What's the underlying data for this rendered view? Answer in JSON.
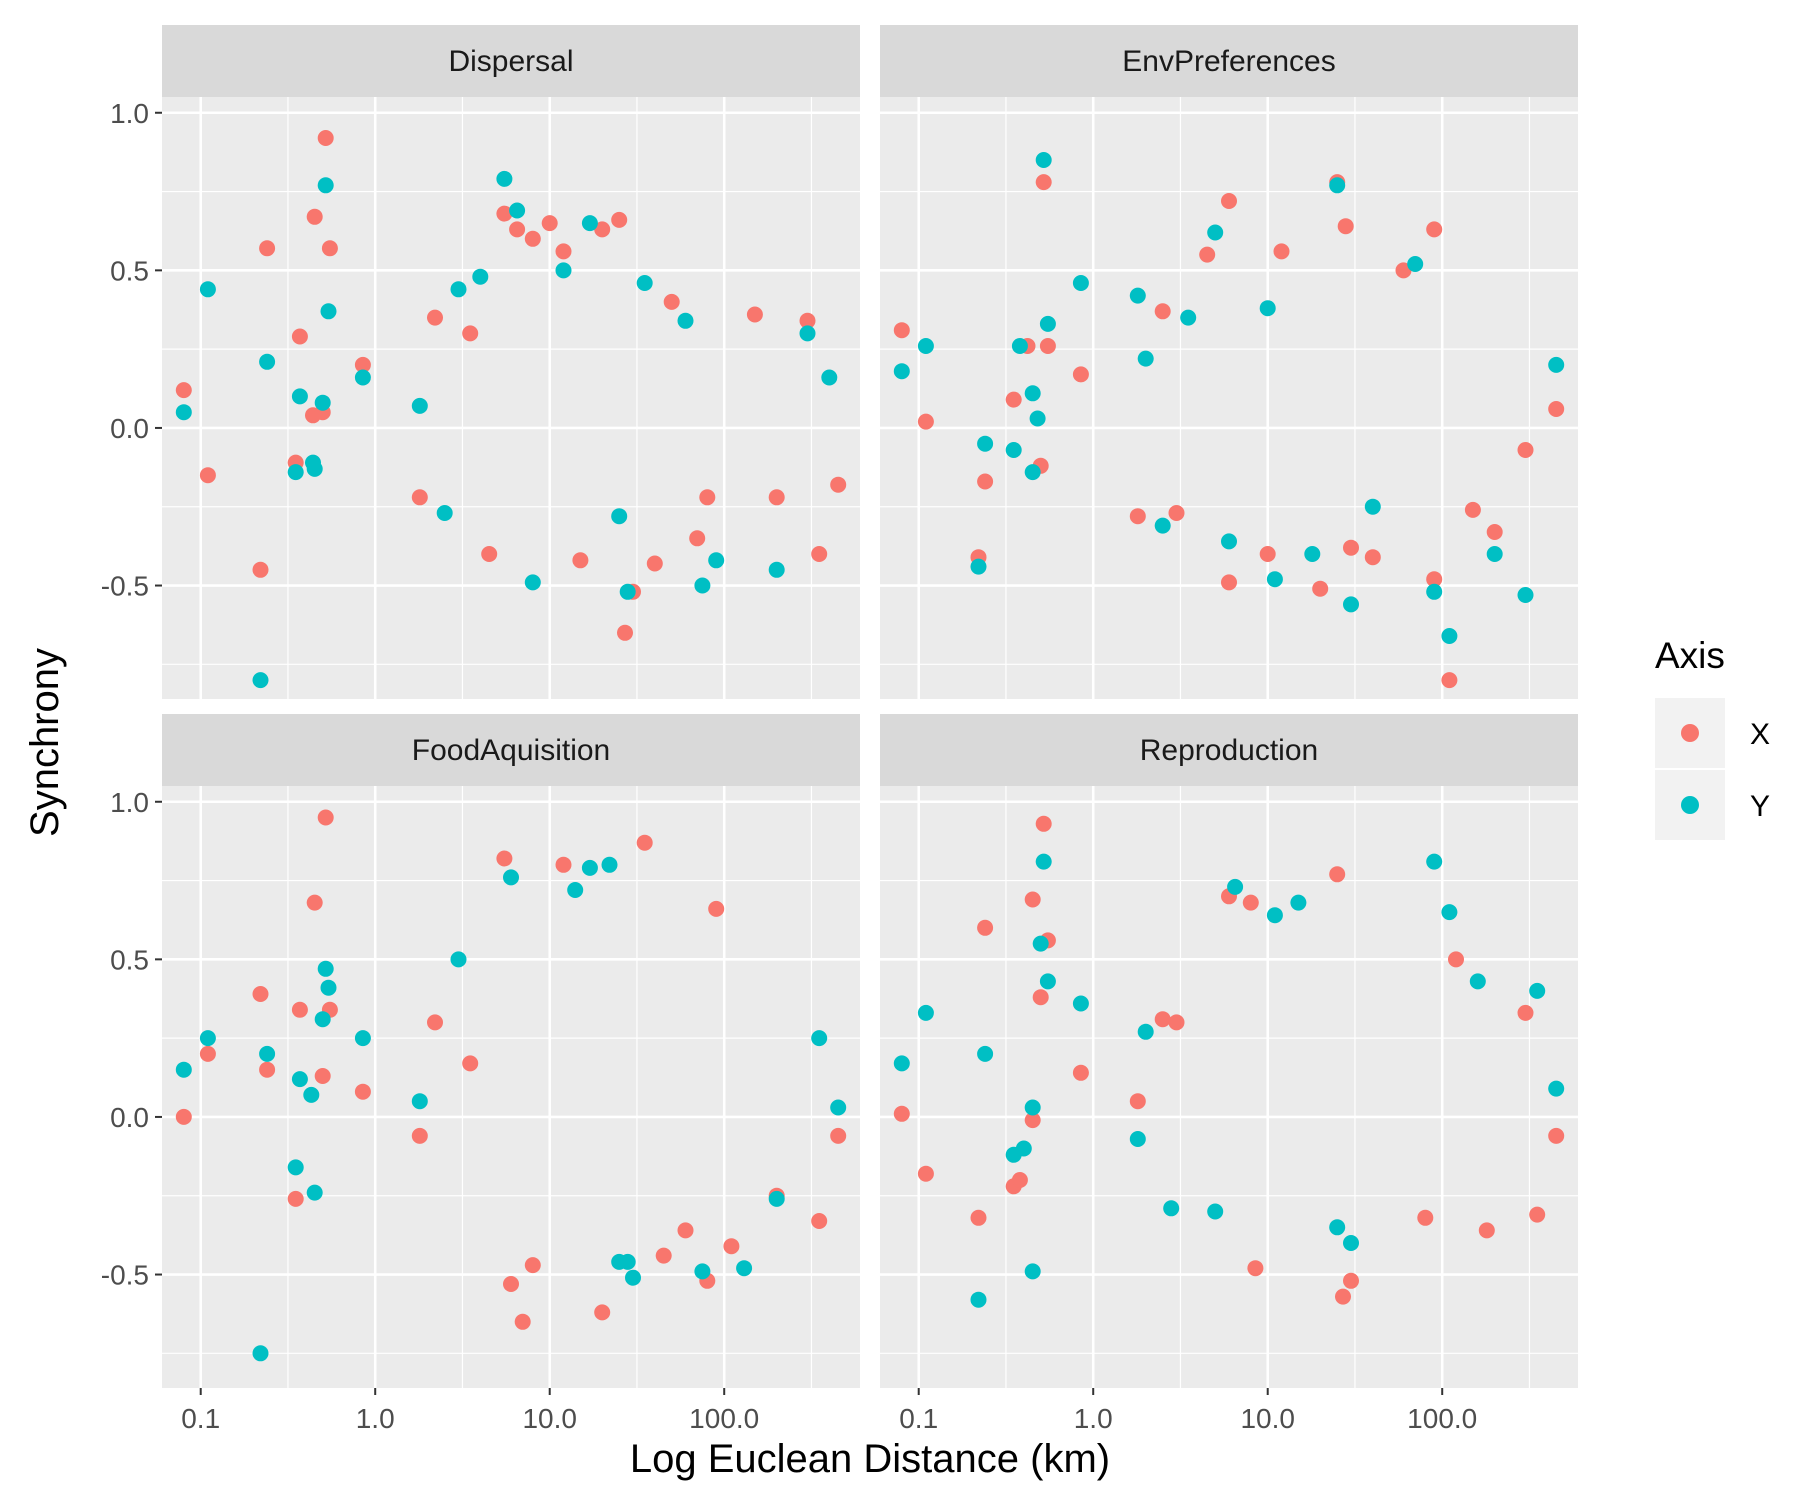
{
  "chart_data": {
    "type": "scatter",
    "xlabel": "Log Euclean Distance (km)",
    "ylabel": "Synchrony",
    "x_scale": "log10",
    "xlim": [
      0.06,
      600
    ],
    "ylim": [
      -0.86,
      1.05
    ],
    "x_ticks": [
      0.1,
      1,
      10,
      100
    ],
    "x_tick_labels": [
      "0.1",
      "1.0",
      "10.0",
      "100.0"
    ],
    "y_ticks": [
      1.0,
      0.5,
      0.0,
      -0.5
    ],
    "y_tick_labels": [
      "1.0",
      "0.5",
      "0.0",
      "-0.5"
    ],
    "grid": true,
    "legend": {
      "title": "Axis",
      "position": "right",
      "entries": [
        {
          "name": "X",
          "color": "#F8766D"
        },
        {
          "name": "Y",
          "color": "#00BFC4"
        }
      ]
    },
    "panels": [
      {
        "title": "Dispersal",
        "series": [
          {
            "name": "X",
            "color": "#F8766D",
            "points": [
              [
                0.08,
                0.12
              ],
              [
                0.11,
                -0.15
              ],
              [
                0.22,
                -0.45
              ],
              [
                0.24,
                0.57
              ],
              [
                0.37,
                0.29
              ],
              [
                0.35,
                -0.11
              ],
              [
                0.45,
                0.67
              ],
              [
                0.44,
                0.04
              ],
              [
                0.52,
                0.92
              ],
              [
                0.55,
                0.57
              ],
              [
                0.5,
                0.05
              ],
              [
                0.85,
                0.2
              ],
              [
                1.8,
                -0.22
              ],
              [
                2.2,
                0.35
              ],
              [
                3.5,
                0.3
              ],
              [
                4.5,
                -0.4
              ],
              [
                5.5,
                0.68
              ],
              [
                6.5,
                0.63
              ],
              [
                8.0,
                0.6
              ],
              [
                10.0,
                0.65
              ],
              [
                12.0,
                0.56
              ],
              [
                15.0,
                -0.42
              ],
              [
                20.0,
                0.63
              ],
              [
                25.0,
                0.66
              ],
              [
                27.0,
                -0.65
              ],
              [
                30.0,
                -0.52
              ],
              [
                40.0,
                -0.43
              ],
              [
                50.0,
                0.4
              ],
              [
                70.0,
                -0.35
              ],
              [
                80.0,
                -0.22
              ],
              [
                150.0,
                0.36
              ],
              [
                200.0,
                -0.22
              ],
              [
                300.0,
                0.34
              ],
              [
                350.0,
                -0.4
              ],
              [
                450.0,
                -0.18
              ]
            ]
          },
          {
            "name": "Y",
            "color": "#00BFC4",
            "points": [
              [
                0.08,
                0.05
              ],
              [
                0.11,
                0.44
              ],
              [
                0.22,
                -0.8
              ],
              [
                0.24,
                0.21
              ],
              [
                0.35,
                -0.14
              ],
              [
                0.37,
                0.1
              ],
              [
                0.45,
                -0.13
              ],
              [
                0.44,
                -0.11
              ],
              [
                0.52,
                0.77
              ],
              [
                0.54,
                0.37
              ],
              [
                0.5,
                0.08
              ],
              [
                0.85,
                0.16
              ],
              [
                1.8,
                0.07
              ],
              [
                2.5,
                -0.27
              ],
              [
                3.0,
                0.44
              ],
              [
                4.0,
                0.48
              ],
              [
                5.5,
                0.79
              ],
              [
                6.5,
                0.69
              ],
              [
                8.0,
                -0.49
              ],
              [
                12.0,
                0.5
              ],
              [
                17.0,
                0.65
              ],
              [
                25.0,
                -0.28
              ],
              [
                28.0,
                -0.52
              ],
              [
                35.0,
                0.46
              ],
              [
                60.0,
                0.34
              ],
              [
                75.0,
                -0.5
              ],
              [
                90.0,
                -0.42
              ],
              [
                200.0,
                -0.45
              ],
              [
                300.0,
                0.3
              ],
              [
                400.0,
                0.16
              ]
            ]
          }
        ]
      },
      {
        "title": "EnvPreferences",
        "series": [
          {
            "name": "X",
            "color": "#F8766D",
            "points": [
              [
                0.08,
                0.31
              ],
              [
                0.11,
                0.02
              ],
              [
                0.22,
                -0.41
              ],
              [
                0.24,
                -0.17
              ],
              [
                0.35,
                0.09
              ],
              [
                0.42,
                0.26
              ],
              [
                0.5,
                -0.12
              ],
              [
                0.52,
                0.78
              ],
              [
                0.55,
                0.26
              ],
              [
                0.85,
                0.17
              ],
              [
                1.8,
                -0.28
              ],
              [
                2.5,
                0.37
              ],
              [
                3.0,
                -0.27
              ],
              [
                4.5,
                0.55
              ],
              [
                6.0,
                0.72
              ],
              [
                6.0,
                -0.49
              ],
              [
                10.0,
                -0.4
              ],
              [
                12.0,
                0.56
              ],
              [
                20.0,
                -0.51
              ],
              [
                25.0,
                0.78
              ],
              [
                28.0,
                0.64
              ],
              [
                30.0,
                -0.38
              ],
              [
                40.0,
                -0.41
              ],
              [
                60.0,
                0.5
              ],
              [
                90.0,
                0.63
              ],
              [
                90.0,
                -0.48
              ],
              [
                110.0,
                -0.8
              ],
              [
                150.0,
                -0.26
              ],
              [
                200.0,
                -0.33
              ],
              [
                300.0,
                -0.07
              ],
              [
                450.0,
                0.06
              ]
            ]
          },
          {
            "name": "Y",
            "color": "#00BFC4",
            "points": [
              [
                0.08,
                0.18
              ],
              [
                0.11,
                0.26
              ],
              [
                0.22,
                -0.44
              ],
              [
                0.24,
                -0.05
              ],
              [
                0.35,
                -0.07
              ],
              [
                0.38,
                0.26
              ],
              [
                0.45,
                0.11
              ],
              [
                0.48,
                0.03
              ],
              [
                0.52,
                0.85
              ],
              [
                0.55,
                0.33
              ],
              [
                0.45,
                -0.14
              ],
              [
                0.85,
                0.46
              ],
              [
                1.8,
                0.42
              ],
              [
                2.0,
                0.22
              ],
              [
                2.5,
                -0.31
              ],
              [
                3.5,
                0.35
              ],
              [
                5.0,
                0.62
              ],
              [
                6.0,
                -0.36
              ],
              [
                10.0,
                0.38
              ],
              [
                11.0,
                -0.48
              ],
              [
                18.0,
                -0.4
              ],
              [
                25.0,
                0.77
              ],
              [
                30.0,
                -0.56
              ],
              [
                40.0,
                -0.25
              ],
              [
                70.0,
                0.52
              ],
              [
                90.0,
                -0.52
              ],
              [
                110.0,
                -0.66
              ],
              [
                200.0,
                -0.4
              ],
              [
                300.0,
                -0.53
              ],
              [
                450.0,
                0.2
              ]
            ]
          }
        ]
      },
      {
        "title": "FoodAquisition",
        "series": [
          {
            "name": "X",
            "color": "#F8766D",
            "points": [
              [
                0.08,
                0.0
              ],
              [
                0.11,
                0.2
              ],
              [
                0.22,
                0.39
              ],
              [
                0.24,
                0.15
              ],
              [
                0.35,
                -0.26
              ],
              [
                0.37,
                0.34
              ],
              [
                0.45,
                0.68
              ],
              [
                0.52,
                0.95
              ],
              [
                0.55,
                0.34
              ],
              [
                0.5,
                0.13
              ],
              [
                0.85,
                0.08
              ],
              [
                1.8,
                -0.06
              ],
              [
                2.2,
                0.3
              ],
              [
                3.5,
                0.17
              ],
              [
                5.5,
                0.82
              ],
              [
                6.0,
                -0.53
              ],
              [
                7.0,
                -0.65
              ],
              [
                8.0,
                -0.47
              ],
              [
                12.0,
                0.8
              ],
              [
                20.0,
                -0.62
              ],
              [
                35.0,
                0.87
              ],
              [
                45.0,
                -0.44
              ],
              [
                60.0,
                -0.36
              ],
              [
                80.0,
                -0.52
              ],
              [
                90.0,
                0.66
              ],
              [
                110.0,
                -0.41
              ],
              [
                200.0,
                -0.25
              ],
              [
                350.0,
                -0.33
              ],
              [
                450.0,
                -0.06
              ]
            ]
          },
          {
            "name": "Y",
            "color": "#00BFC4",
            "points": [
              [
                0.08,
                0.15
              ],
              [
                0.11,
                0.25
              ],
              [
                0.22,
                -0.75
              ],
              [
                0.24,
                0.2
              ],
              [
                0.35,
                -0.16
              ],
              [
                0.37,
                0.12
              ],
              [
                0.43,
                0.07
              ],
              [
                0.45,
                -0.24
              ],
              [
                0.5,
                0.31
              ],
              [
                0.52,
                0.47
              ],
              [
                0.54,
                0.41
              ],
              [
                0.85,
                0.25
              ],
              [
                1.8,
                0.05
              ],
              [
                3.0,
                0.5
              ],
              [
                6.0,
                0.76
              ],
              [
                14.0,
                0.72
              ],
              [
                17.0,
                0.79
              ],
              [
                22.0,
                0.8
              ],
              [
                25.0,
                -0.46
              ],
              [
                28.0,
                -0.46
              ],
              [
                30.0,
                -0.51
              ],
              [
                75.0,
                -0.49
              ],
              [
                130.0,
                -0.48
              ],
              [
                200.0,
                -0.26
              ],
              [
                350.0,
                0.25
              ],
              [
                450.0,
                0.03
              ]
            ]
          }
        ]
      },
      {
        "title": "Reproduction",
        "series": [
          {
            "name": "X",
            "color": "#F8766D",
            "points": [
              [
                0.08,
                0.01
              ],
              [
                0.11,
                -0.18
              ],
              [
                0.22,
                -0.32
              ],
              [
                0.24,
                0.6
              ],
              [
                0.35,
                -0.22
              ],
              [
                0.38,
                -0.2
              ],
              [
                0.45,
                0.69
              ],
              [
                0.5,
                0.38
              ],
              [
                0.52,
                0.93
              ],
              [
                0.55,
                0.56
              ],
              [
                0.45,
                -0.01
              ],
              [
                0.85,
                0.14
              ],
              [
                1.8,
                0.05
              ],
              [
                2.5,
                0.31
              ],
              [
                3.0,
                0.3
              ],
              [
                6.0,
                0.7
              ],
              [
                8.0,
                0.68
              ],
              [
                8.5,
                -0.48
              ],
              [
                25.0,
                0.77
              ],
              [
                27.0,
                -0.57
              ],
              [
                30.0,
                -0.52
              ],
              [
                80.0,
                -0.32
              ],
              [
                120.0,
                0.5
              ],
              [
                180.0,
                -0.36
              ],
              [
                300.0,
                0.33
              ],
              [
                350.0,
                -0.31
              ],
              [
                450.0,
                -0.06
              ]
            ]
          },
          {
            "name": "Y",
            "color": "#00BFC4",
            "points": [
              [
                0.08,
                0.17
              ],
              [
                0.11,
                0.33
              ],
              [
                0.22,
                -0.58
              ],
              [
                0.24,
                0.2
              ],
              [
                0.35,
                -0.12
              ],
              [
                0.4,
                -0.1
              ],
              [
                0.45,
                0.03
              ],
              [
                0.45,
                -0.49
              ],
              [
                0.5,
                0.55
              ],
              [
                0.52,
                0.81
              ],
              [
                0.55,
                0.43
              ],
              [
                0.85,
                0.36
              ],
              [
                1.8,
                -0.07
              ],
              [
                2.0,
                0.27
              ],
              [
                2.8,
                -0.29
              ],
              [
                5.0,
                -0.3
              ],
              [
                6.5,
                0.73
              ],
              [
                11.0,
                0.64
              ],
              [
                15.0,
                0.68
              ],
              [
                25.0,
                -0.35
              ],
              [
                30.0,
                -0.4
              ],
              [
                90.0,
                0.81
              ],
              [
                110.0,
                0.65
              ],
              [
                160.0,
                0.43
              ],
              [
                350.0,
                0.4
              ],
              [
                450.0,
                0.09
              ]
            ]
          }
        ]
      }
    ]
  }
}
